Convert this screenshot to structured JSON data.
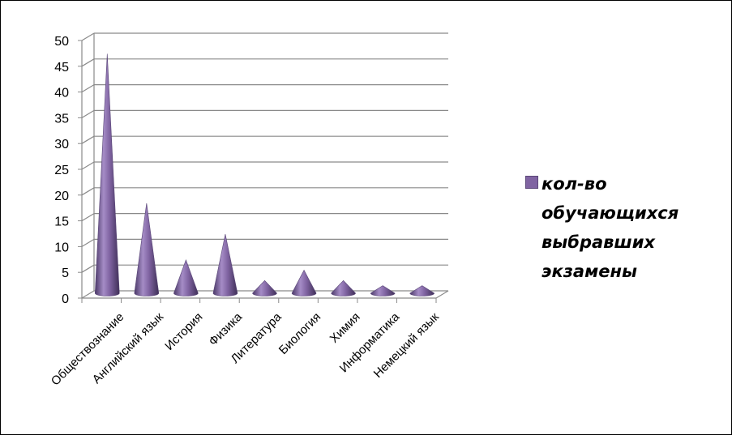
{
  "chart_data": {
    "type": "bar",
    "style": "3d-cone",
    "categories": [
      "Обществознание",
      "Английский язык",
      "История",
      "Физика",
      "Литература",
      "Биология",
      "Химия",
      "Информатика",
      "Немецкий язык"
    ],
    "series": [
      {
        "name": "кол-во обучающихся выбравших экзамены",
        "values": [
          46,
          17,
          6,
          11,
          2,
          4,
          2,
          1,
          1
        ]
      }
    ],
    "yticks": [
      0,
      5,
      10,
      15,
      20,
      25,
      30,
      35,
      40,
      45,
      50
    ],
    "ylim": [
      0,
      50
    ],
    "grid": true,
    "legend_position": "right",
    "color": "#8064a2"
  }
}
